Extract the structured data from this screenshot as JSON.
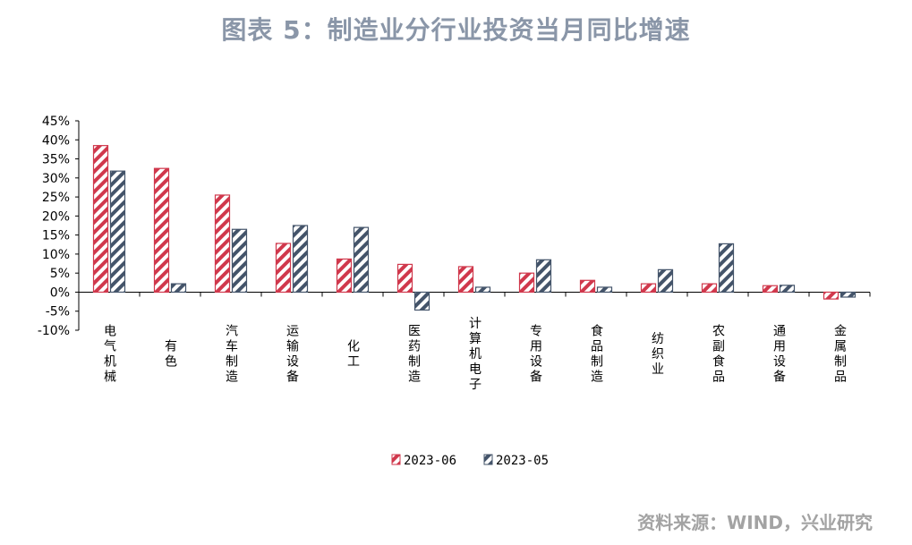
{
  "title": "图表 5：制造业分行业投资当月同比增速",
  "source": "资料来源：WIND，兴业研究",
  "colors": {
    "series1": "#d0384c",
    "series2": "#44546a",
    "axis": "#000000"
  },
  "chart_data": {
    "type": "bar",
    "title": "图表 5：制造业分行业投资当月同比增速",
    "categories": [
      "电气机械",
      "有色",
      "汽车制造",
      "运输设备",
      "化工",
      "医药制造",
      "计算机电子",
      "专用设备",
      "食品制造",
      "纺织业",
      "农副食品",
      "通用设备",
      "金属制品"
    ],
    "series": [
      {
        "name": "2023-06",
        "values": [
          38.5,
          32.5,
          25.5,
          12.8,
          8.7,
          7.3,
          6.7,
          5.0,
          3.1,
          2.2,
          2.2,
          1.7,
          -1.8
        ],
        "pattern": "hatch-red"
      },
      {
        "name": "2023-05",
        "values": [
          31.8,
          2.2,
          16.5,
          17.5,
          17.0,
          -4.7,
          1.3,
          8.5,
          1.3,
          5.9,
          12.7,
          1.8,
          -1.3
        ],
        "pattern": "hatch-navy"
      }
    ],
    "ylim": [
      -10,
      45
    ],
    "yticks": [
      -10,
      -5,
      0,
      5,
      10,
      15,
      20,
      25,
      30,
      35,
      40,
      45
    ],
    "ytick_labels": [
      "-10%",
      "-5%",
      "0%",
      "5%",
      "10%",
      "15%",
      "20%",
      "25%",
      "30%",
      "35%",
      "40%",
      "45%"
    ],
    "xlabel": "",
    "ylabel": "",
    "grid": false,
    "legend_position": "bottom-center"
  }
}
